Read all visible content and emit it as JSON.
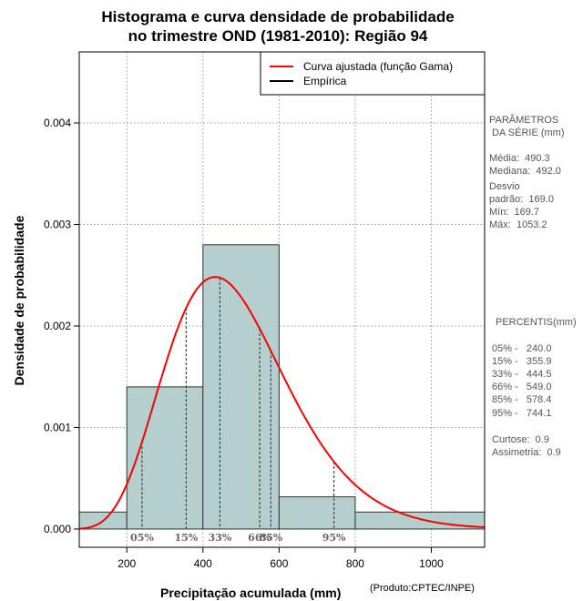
{
  "chart_data": {
    "type": "bar",
    "title_line1": "Histograma e curva densidade de probabilidade",
    "title_line2": "no trimestre OND (1981-2010): Região 94",
    "xlabel": "Precipitação acumulada (mm)",
    "ylabel": "Densidade de probabilidade",
    "credit": "(Produto:CPTEC/INPE)",
    "xlim": [
      75,
      1140
    ],
    "ylim": [
      -0.00018,
      0.0047
    ],
    "xticks": [
      "200",
      "400",
      "600",
      "800",
      "1000"
    ],
    "xtick_values": [
      200,
      400,
      600,
      800,
      1000
    ],
    "yticks": [
      "0.000",
      "0.001",
      "0.002",
      "0.003",
      "0.004"
    ],
    "ytick_values": [
      0,
      0.001,
      0.002,
      0.003,
      0.004
    ],
    "bins": [
      {
        "from": 0,
        "to": 200,
        "density": 0.000167
      },
      {
        "from": 200,
        "to": 400,
        "density": 0.0014
      },
      {
        "from": 400,
        "to": 600,
        "density": 0.0028
      },
      {
        "from": 600,
        "to": 800,
        "density": 0.000317
      },
      {
        "from": 800,
        "to": 1200,
        "density": 0.000167
      }
    ],
    "gamma_fit": {
      "shape": 8.4,
      "scale": 58.4
    },
    "legend": [
      {
        "label": "Curva ajustada (função Gama)",
        "color": "#ff0000"
      },
      {
        "label": "Empírica",
        "color": "#000000"
      }
    ],
    "percentile_markers": [
      {
        "label": "05%",
        "value": 240.0
      },
      {
        "label": "15%",
        "value": 355.9
      },
      {
        "label": "33%",
        "value": 444.5
      },
      {
        "label": "66%",
        "value": 549.0
      },
      {
        "label": "85%",
        "value": 578.4
      },
      {
        "label": "95%",
        "value": 744.1
      }
    ],
    "colors": {
      "bars": "#b5cfcf",
      "curve": "#ff0000",
      "grid": "#b0b0b0",
      "percentile_lines": "#444444"
    }
  },
  "params_panel": {
    "heading1": "PARÂMETROS",
    "heading2": " DA SÉRIE (mm)",
    "media": "Média:  490.3",
    "mediana": "Mediana:  492.0",
    "desvio1": "Desvio",
    "desvio2": "padrão:  169.0",
    "min": "Mín:  169.7",
    "max": "Máx:  1053.2"
  },
  "percentis_panel": {
    "heading": "PERCENTIS(mm)",
    "p05": "05% -   240.0",
    "p15": "15% -   355.9",
    "p33": "33% -   444.5",
    "p66": "66% -   549.0",
    "p85": "85% -   578.4",
    "p95": "95% -   744.1",
    "curtose": "Curtose:  0.9",
    "assimetria": "Assimetria:  0.9"
  }
}
